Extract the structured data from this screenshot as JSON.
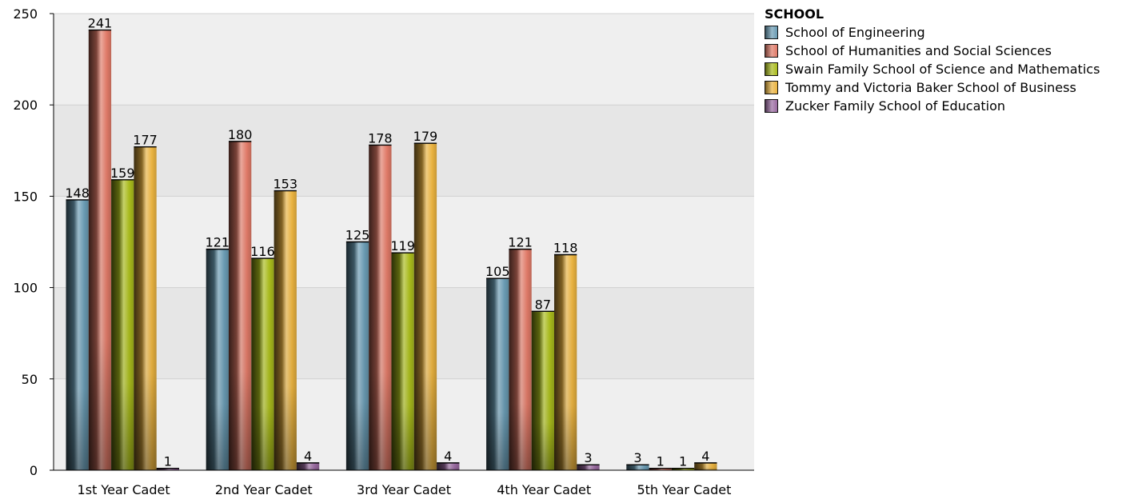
{
  "chart_data": {
    "type": "bar",
    "categories": [
      "1st Year Cadet",
      "2nd Year Cadet",
      "3rd Year Cadet",
      "4th Year Cadet",
      "5th Year Cadet"
    ],
    "series": [
      {
        "name": "School of Engineering",
        "values": [
          148,
          121,
          125,
          105,
          3
        ],
        "color": "#6a9bb3"
      },
      {
        "name": "School of Humanities and Social Sciences",
        "values": [
          241,
          180,
          178,
          121,
          1
        ],
        "color": "#e07a68"
      },
      {
        "name": "Swain Family School of Science and Mathematics",
        "values": [
          159,
          116,
          119,
          87,
          1
        ],
        "color": "#a9bb1c"
      },
      {
        "name": "Tommy and Victoria Baker School of Business",
        "values": [
          177,
          153,
          179,
          118,
          4
        ],
        "color": "#eab340"
      },
      {
        "name": "Zucker Family School of Education",
        "values": [
          1,
          4,
          4,
          3,
          null
        ],
        "color": "#9a6aa0"
      }
    ],
    "data_labels": [
      [
        "148",
        "241",
        "159",
        "177",
        "1"
      ],
      [
        "121",
        "180",
        "116",
        "153",
        "4"
      ],
      [
        "125",
        "178",
        "119",
        "179",
        "4"
      ],
      [
        "105",
        "121",
        "87",
        "118",
        "3"
      ],
      [
        "3",
        "1",
        "1",
        "4",
        ""
      ]
    ],
    "legend_title": "SCHOOL",
    "legend_position": "right",
    "y_ticks": [
      "0",
      "50",
      "100",
      "150",
      "200",
      "250"
    ],
    "ylim": [
      0,
      250
    ],
    "grid": true
  }
}
